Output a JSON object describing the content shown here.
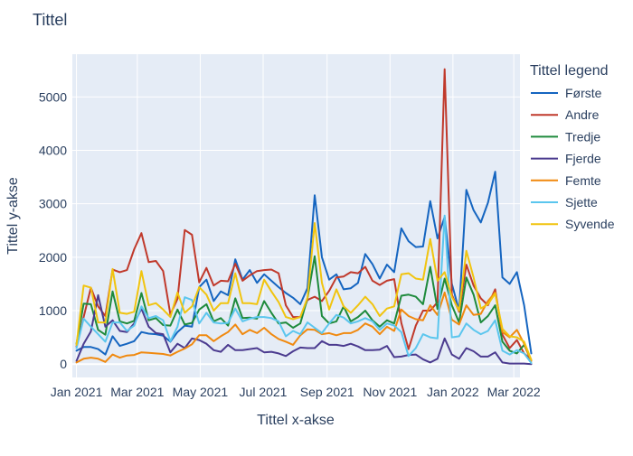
{
  "chart_data": {
    "type": "line",
    "title": "Tittel",
    "xlabel": "Tittel x-akse",
    "ylabel": "Tittel y-akse",
    "legend_title": "Tittel legend",
    "legend_position": "right",
    "grid": true,
    "x_start": "2021-01-01",
    "x_step_days": 7,
    "xlim": [
      "2020-12-28",
      "2022-03-07"
    ],
    "ylim": [
      -250,
      5800
    ],
    "x_ticks": [
      "Jan 2021",
      "Mar 2021",
      "May 2021",
      "Jul 2021",
      "Sep 2021",
      "Nov 2021",
      "Jan 2022",
      "Mar 2022"
    ],
    "y_ticks": [
      0,
      1000,
      2000,
      3000,
      4000,
      5000
    ],
    "series": [
      {
        "name": "Første",
        "color": "#1565c0",
        "values": [
          250,
          320,
          320,
          280,
          180,
          520,
          340,
          380,
          430,
          600,
          570,
          560,
          530,
          420,
          600,
          720,
          700,
          1440,
          1580,
          1180,
          1360,
          1290,
          1960,
          1580,
          1760,
          1520,
          1680,
          1560,
          1440,
          1330,
          1240,
          1120,
          1420,
          3160,
          2000,
          1580,
          1680,
          1400,
          1420,
          1520,
          2060,
          1870,
          1600,
          1860,
          1720,
          2540,
          2300,
          2190,
          2200,
          3050,
          2350,
          2750,
          1500,
          1000,
          3260,
          2880,
          2650,
          3020,
          3600,
          1620,
          1500,
          1720,
          1100,
          200
        ]
      },
      {
        "name": "Andre",
        "color": "#c0392b",
        "values": [
          330,
          880,
          1430,
          1080,
          900,
          1770,
          1720,
          1760,
          2150,
          2450,
          1910,
          1930,
          1740,
          930,
          1220,
          2510,
          2420,
          1530,
          1800,
          1470,
          1560,
          1550,
          1880,
          1560,
          1660,
          1740,
          1760,
          1770,
          1700,
          1100,
          880,
          880,
          1200,
          1260,
          1180,
          1370,
          1620,
          1640,
          1720,
          1700,
          1820,
          1560,
          1480,
          1560,
          1590,
          770,
          280,
          720,
          1000,
          1000,
          1160,
          5520,
          1300,
          980,
          1860,
          1470,
          1230,
          1100,
          1400,
          550,
          300,
          450,
          200,
          80
        ]
      },
      {
        "name": "Tredje",
        "color": "#1e8a3c",
        "values": [
          380,
          1130,
          1120,
          640,
          550,
          1360,
          800,
          760,
          810,
          1330,
          820,
          860,
          730,
          720,
          1020,
          740,
          770,
          1020,
          1120,
          800,
          860,
          720,
          1230,
          860,
          870,
          850,
          1180,
          960,
          760,
          780,
          680,
          760,
          1230,
          2020,
          900,
          760,
          800,
          1080,
          800,
          880,
          1000,
          820,
          700,
          820,
          760,
          1280,
          1300,
          1260,
          1120,
          1820,
          1030,
          1600,
          1100,
          780,
          1620,
          1300,
          780,
          900,
          1100,
          420,
          250,
          200,
          360,
          60
        ]
      },
      {
        "name": "Fjerde",
        "color": "#4b3b8f",
        "values": [
          60,
          380,
          610,
          1290,
          700,
          820,
          620,
          600,
          760,
          1040,
          700,
          580,
          560,
          220,
          380,
          300,
          480,
          450,
          380,
          260,
          230,
          360,
          260,
          260,
          280,
          300,
          220,
          230,
          200,
          150,
          240,
          310,
          300,
          300,
          430,
          360,
          360,
          340,
          380,
          330,
          260,
          260,
          270,
          340,
          130,
          140,
          170,
          180,
          90,
          30,
          100,
          480,
          180,
          100,
          300,
          240,
          140,
          140,
          220,
          30,
          10,
          10,
          10,
          0
        ]
      },
      {
        "name": "Femte",
        "color": "#f0890f",
        "values": [
          30,
          100,
          120,
          100,
          40,
          180,
          120,
          160,
          170,
          220,
          210,
          200,
          190,
          160,
          230,
          290,
          370,
          540,
          540,
          430,
          520,
          600,
          740,
          560,
          640,
          580,
          680,
          560,
          470,
          420,
          360,
          540,
          650,
          640,
          560,
          580,
          540,
          580,
          580,
          640,
          760,
          700,
          560,
          700,
          620,
          1020,
          900,
          840,
          820,
          1100,
          920,
          1340,
          830,
          740,
          1100,
          920,
          940,
          1180,
          1340,
          600,
          500,
          640,
          380,
          60
        ]
      },
      {
        "name": "Sjette",
        "color": "#5bc6ee",
        "values": [
          300,
          850,
          700,
          560,
          420,
          780,
          780,
          620,
          720,
          1080,
          860,
          900,
          820,
          430,
          700,
          1250,
          1200,
          760,
          960,
          780,
          760,
          770,
          1040,
          800,
          850,
          880,
          880,
          860,
          800,
          520,
          620,
          560,
          780,
          680,
          580,
          760,
          920,
          870,
          760,
          800,
          860,
          800,
          640,
          760,
          720,
          600,
          150,
          300,
          560,
          500,
          480,
          2780,
          500,
          520,
          760,
          640,
          560,
          620,
          820,
          250,
          180,
          260,
          200,
          20
        ]
      },
      {
        "name": "Syvende",
        "color": "#f1c40f",
        "values": [
          360,
          1470,
          1430,
          780,
          780,
          1780,
          960,
          940,
          980,
          1740,
          1100,
          1140,
          1020,
          880,
          1340,
          960,
          1080,
          1440,
          1300,
          1000,
          1140,
          1140,
          1700,
          1140,
          1140,
          1120,
          1580,
          1360,
          1160,
          880,
          840,
          880,
          1240,
          2640,
          1520,
          1020,
          1400,
          1080,
          960,
          1100,
          1260,
          1120,
          900,
          1040,
          1080,
          1680,
          1700,
          1600,
          1580,
          2340,
          1560,
          1720,
          1260,
          1000,
          2120,
          1620,
          1040,
          1120,
          1320,
          660,
          520,
          500,
          420,
          80
        ]
      }
    ]
  }
}
